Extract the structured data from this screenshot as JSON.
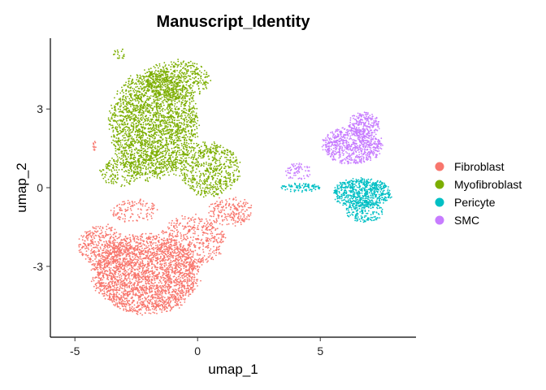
{
  "chart_data": {
    "type": "scatter",
    "title": "Manuscript_Identity",
    "xlabel": "umap_1",
    "ylabel": "umap_2",
    "xlim": [
      -6.0,
      8.9
    ],
    "ylim": [
      -5.7,
      5.7
    ],
    "x_ticks": [
      -5,
      0,
      5
    ],
    "y_ticks": [
      -3,
      0,
      3
    ],
    "x_tick_labels": [
      "-5",
      "0",
      "5"
    ],
    "y_tick_labels": [
      "-3",
      "0",
      "3"
    ],
    "grid": false,
    "legend_position": "right",
    "series": [
      {
        "name": "Fibroblast",
        "color": "#F8766D",
        "clusters": [
          {
            "cx": -2.1,
            "cy": -3.3,
            "rx": 2.3,
            "ry": 1.6,
            "n": 2600
          },
          {
            "cx": -3.9,
            "cy": -2.2,
            "rx": 1.0,
            "ry": 0.9,
            "n": 350
          },
          {
            "cx": -0.2,
            "cy": -2.0,
            "rx": 1.4,
            "ry": 1.0,
            "n": 450
          },
          {
            "cx": 1.3,
            "cy": -0.9,
            "rx": 1.0,
            "ry": 0.6,
            "n": 200
          },
          {
            "cx": -2.6,
            "cy": -0.9,
            "rx": 1.0,
            "ry": 0.5,
            "n": 120
          },
          {
            "cx": -4.2,
            "cy": 1.6,
            "rx": 0.08,
            "ry": 0.25,
            "n": 12
          }
        ]
      },
      {
        "name": "Myofibroblast",
        "color": "#7CAE00",
        "clusters": [
          {
            "cx": -1.8,
            "cy": 2.4,
            "rx": 1.9,
            "ry": 2.2,
            "n": 2500
          },
          {
            "cx": 0.5,
            "cy": 0.7,
            "rx": 1.3,
            "ry": 1.1,
            "n": 600
          },
          {
            "cx": -0.8,
            "cy": 4.1,
            "rx": 1.4,
            "ry": 0.8,
            "n": 450
          },
          {
            "cx": -3.1,
            "cy": 0.6,
            "rx": 0.9,
            "ry": 0.6,
            "n": 180
          },
          {
            "cx": -3.2,
            "cy": 5.1,
            "rx": 0.25,
            "ry": 0.25,
            "n": 20
          }
        ]
      },
      {
        "name": "Pericyte",
        "color": "#00BFC4",
        "clusters": [
          {
            "cx": 6.7,
            "cy": -0.2,
            "rx": 1.3,
            "ry": 0.6,
            "n": 650
          },
          {
            "cx": 4.2,
            "cy": 0.0,
            "rx": 0.9,
            "ry": 0.18,
            "n": 90
          },
          {
            "cx": 6.8,
            "cy": -0.9,
            "rx": 0.8,
            "ry": 0.45,
            "n": 180
          }
        ]
      },
      {
        "name": "SMC",
        "color": "#C77CFF",
        "clusters": [
          {
            "cx": 6.3,
            "cy": 1.6,
            "rx": 1.3,
            "ry": 0.75,
            "n": 700
          },
          {
            "cx": 6.8,
            "cy": 2.4,
            "rx": 0.7,
            "ry": 0.5,
            "n": 220
          },
          {
            "cx": 4.1,
            "cy": 0.6,
            "rx": 0.6,
            "ry": 0.35,
            "n": 70
          }
        ]
      }
    ]
  }
}
